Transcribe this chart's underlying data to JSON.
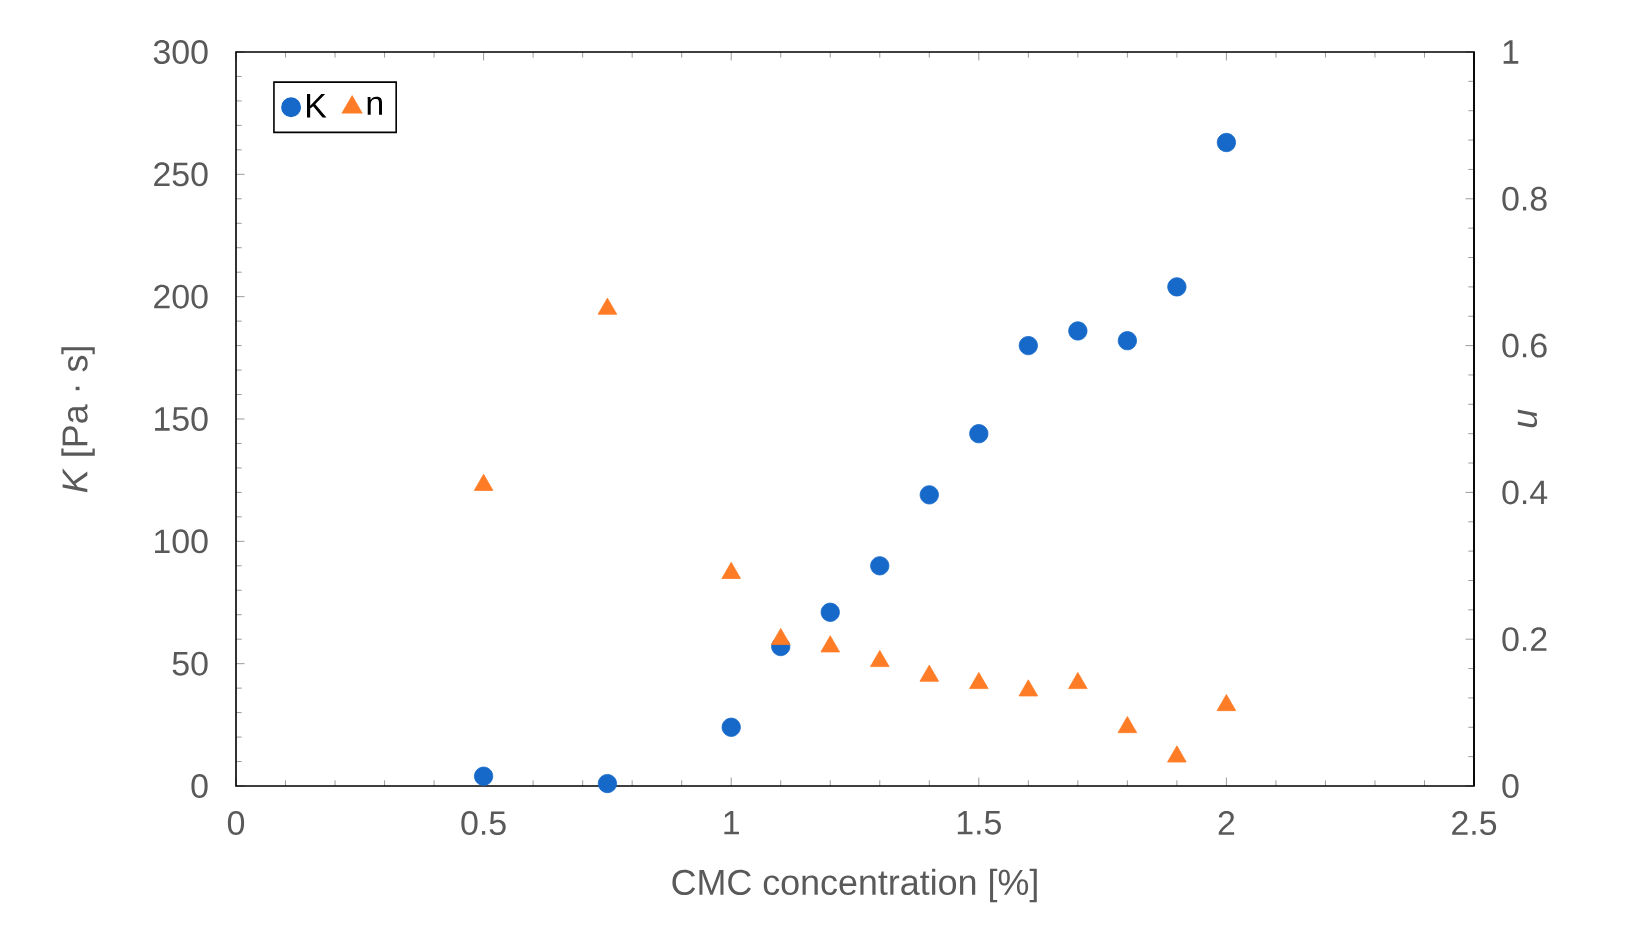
{
  "chart_data": {
    "type": "scatter",
    "xlabel": "CMC concentration [%]",
    "ylabel": "*K* [Pa · s]",
    "y2label": "n",
    "x": [
      0.5,
      0.75,
      1.0,
      1.1,
      1.2,
      1.3,
      1.4,
      1.5,
      1.6,
      1.7,
      1.8,
      1.9,
      2.0
    ],
    "series": [
      {
        "name": "K",
        "color": "#1669c9",
        "marker": "circle",
        "values": [
          4,
          1,
          24,
          57,
          71,
          90,
          119,
          144,
          180,
          186,
          182,
          204,
          263
        ]
      },
      {
        "name": "n",
        "color": "#ff7c26",
        "marker": "triangle",
        "axis": "y2",
        "values": [
          0.41,
          0.65,
          0.29,
          0.2,
          0.19,
          0.17,
          0.15,
          0.14,
          0.13,
          0.14,
          0.08,
          0.04,
          0.11
        ]
      }
    ],
    "xlim": [
      0,
      2.5
    ],
    "xticks": [
      0,
      0.5,
      1,
      1.5,
      2,
      2.5
    ],
    "ylim": [
      0,
      300
    ],
    "yticks": [
      0,
      50,
      100,
      150,
      200,
      250,
      300
    ],
    "y2lim": [
      0,
      1
    ],
    "y2ticks": [
      0,
      0.2,
      0.4,
      0.6,
      0.8,
      1
    ],
    "legend": "top left",
    "grid": false
  }
}
